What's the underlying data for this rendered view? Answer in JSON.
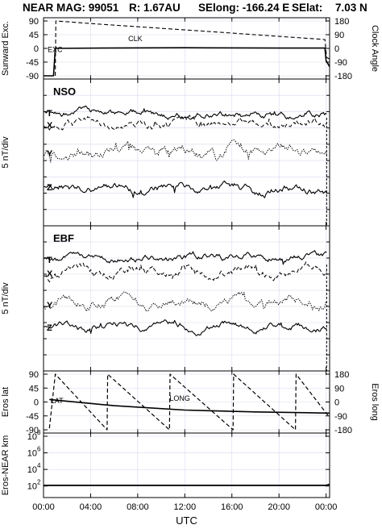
{
  "header": {
    "mission": "NEAR MAG: 99051",
    "radius": "R: 1.67AU",
    "selong": "SElong: -166.24 E",
    "selat": "SElat:",
    "selat_value": "7.03 N"
  },
  "chart_data": [
    {
      "type": "line",
      "ylabel_left": "Sunward Exc.",
      "ylabel_right": "Clock Angle",
      "ylim": [
        -90,
        90
      ],
      "yticks": [
        90,
        45,
        0,
        -45,
        -90
      ],
      "yticks_right": [
        180,
        90,
        0,
        -90,
        -180
      ],
      "series": [
        {
          "name": "CLK",
          "style": "dashed",
          "axis": "right",
          "x": [
            1.0,
            1.05,
            5,
            10,
            15,
            20,
            23.9,
            24.05,
            24.3
          ],
          "y": [
            -180,
            180,
            158,
            132,
            106,
            79,
            58,
            -60,
            -70
          ]
        },
        {
          "name": "EXC",
          "style": "solid",
          "axis": "left",
          "x": [
            0,
            0.85,
            1.0,
            5,
            12,
            20,
            23.9,
            24.0,
            24.3
          ],
          "y": [
            -90,
            -90,
            0,
            1,
            2,
            1,
            1,
            -40,
            -60
          ]
        }
      ]
    },
    {
      "type": "line",
      "title": "NSO",
      "ylabel": "5 nT/div",
      "series": [
        {
          "name": "T",
          "style": "solid"
        },
        {
          "name": "X",
          "style": "dashed"
        },
        {
          "name": "Y",
          "style": "dotted"
        },
        {
          "name": "Z",
          "style": "solid"
        }
      ]
    },
    {
      "type": "line",
      "title": "EBF",
      "ylabel": "5 nT/div",
      "series": [
        {
          "name": "T",
          "style": "solid"
        },
        {
          "name": "X",
          "style": "dashed"
        },
        {
          "name": "Y",
          "style": "dotted"
        },
        {
          "name": "Z",
          "style": "solid"
        }
      ]
    },
    {
      "type": "line",
      "ylabel_left": "Eros lat",
      "ylabel_right": "Eros long",
      "ylim": [
        -90,
        90
      ],
      "yticks": [
        90,
        45,
        0,
        -45,
        -90
      ],
      "yticks_right": [
        180,
        90,
        0,
        -90,
        -180
      ],
      "series": [
        {
          "name": "LAT",
          "style": "solid",
          "axis": "left",
          "x": [
            0.5,
            6,
            12,
            18,
            24.3
          ],
          "y": [
            8,
            -12,
            -26,
            -32,
            -36
          ]
        },
        {
          "name": "LONG",
          "style": "dashed",
          "axis": "right",
          "x": [
            0.5,
            1.0,
            5.4,
            5.45,
            10.7,
            10.75,
            16.1,
            16.15,
            21.4,
            21.45,
            24.3
          ],
          "y": [
            -170,
            180,
            -180,
            180,
            -180,
            180,
            -180,
            180,
            -180,
            180,
            -100
          ]
        }
      ]
    },
    {
      "type": "line",
      "ylabel": "Eros-NEAR km",
      "log_scale": true,
      "yticks": [
        "10^8",
        "10^6",
        "10^4",
        "10^2"
      ],
      "ylim": [
        10,
        100000000
      ],
      "series": [
        {
          "style": "solid",
          "x": [
            0,
            24,
            24.3
          ],
          "y": [
            120,
            120,
            160
          ]
        }
      ]
    }
  ],
  "x_axis": {
    "label": "UTC",
    "range": [
      0,
      24.3
    ],
    "ticks": [
      0,
      4,
      8,
      12,
      16,
      20,
      24
    ],
    "tick_labels": [
      "00:00",
      "04:00",
      "08:00",
      "12:00",
      "16:00",
      "20:00",
      "00:00"
    ]
  }
}
